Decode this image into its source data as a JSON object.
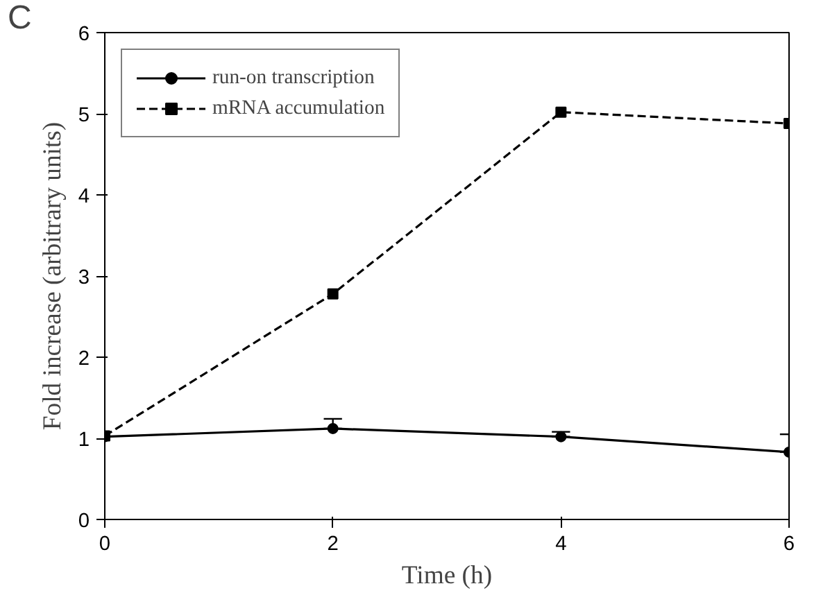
{
  "chart_data": {
    "type": "line",
    "xlabel": "Time (h)",
    "ylabel": "Fold increase (arbitrary units)",
    "annotations": [
      "C"
    ],
    "x": [
      0,
      2,
      4,
      6
    ],
    "series": [
      {
        "name": "run-on transcription",
        "color": "#000000",
        "values": [
          1.02,
          1.12,
          1.02,
          0.83
        ],
        "marker": "circle",
        "line_style": "solid",
        "errors": [
          null,
          [
            1.12,
            1.24
          ],
          [
            1.02,
            1.08
          ],
          [
            0.83,
            1.05
          ]
        ]
      },
      {
        "name": "mRNA accumulation",
        "color": "#000000",
        "values": [
          1.03,
          2.78,
          5.02,
          4.88
        ],
        "marker": "square",
        "line_style": "dashed"
      }
    ],
    "xlim": [
      0,
      6
    ],
    "ylim": [
      0,
      6
    ],
    "xticks": [
      0,
      2,
      4,
      6
    ],
    "yticks": [
      0,
      1,
      2,
      3,
      4,
      5,
      6
    ],
    "grid": false,
    "legend": "top left"
  }
}
